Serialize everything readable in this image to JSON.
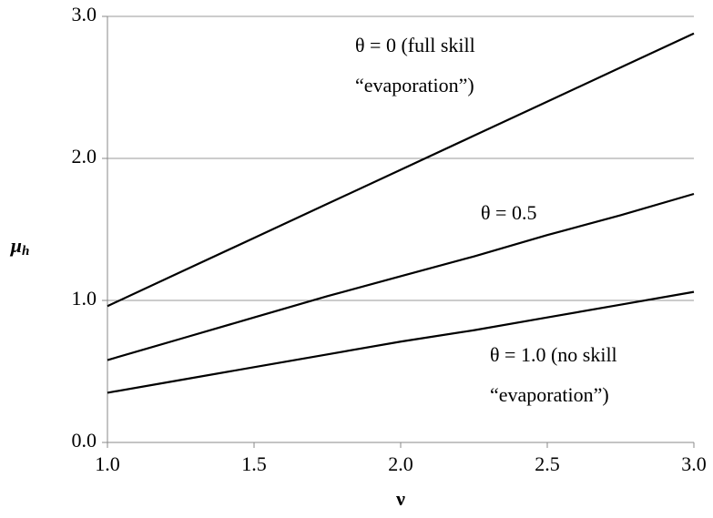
{
  "chart_data": {
    "type": "line",
    "x_label": "ν",
    "y_label": "μ",
    "y_label_sub": "h",
    "x": [
      1.0,
      1.25,
      1.5,
      1.75,
      2.0,
      2.25,
      2.5,
      2.75,
      3.0
    ],
    "series": [
      {
        "color": "#000000",
        "values": [
          0.96,
          1.2,
          1.44,
          1.68,
          1.92,
          2.16,
          2.4,
          2.64,
          2.88
        ]
      },
      {
        "color": "#000000",
        "values": [
          0.58,
          0.73,
          0.88,
          1.03,
          1.17,
          1.31,
          1.46,
          1.6,
          1.75
        ]
      },
      {
        "color": "#000000",
        "values": [
          0.35,
          0.44,
          0.53,
          0.62,
          0.71,
          0.79,
          0.88,
          0.97,
          1.06
        ]
      }
    ],
    "annotations": [
      {
        "lines": [
          "θ = 0 (full skill",
          "“evaporation”)"
        ]
      },
      {
        "lines": [
          "θ = 0.5"
        ]
      },
      {
        "lines": [
          "θ = 1.0 (no skill",
          "“evaporation”)"
        ]
      }
    ],
    "xlim": [
      1.0,
      3.0
    ],
    "xticks": [
      {
        "value": 1,
        "label": "1.0"
      },
      {
        "value": 1.5,
        "label": "1.5"
      },
      {
        "value": 2,
        "label": "2.0"
      },
      {
        "value": 2.5,
        "label": "2.5"
      },
      {
        "value": 3,
        "label": "3.0"
      }
    ],
    "ylim": [
      0,
      3
    ],
    "yticks": [
      {
        "value": 0,
        "label": "0.0"
      },
      {
        "value": 1,
        "label": "1.0"
      },
      {
        "value": 2,
        "label": "2.0"
      },
      {
        "value": 3,
        "label": "3.0"
      }
    ],
    "grid": true
  }
}
